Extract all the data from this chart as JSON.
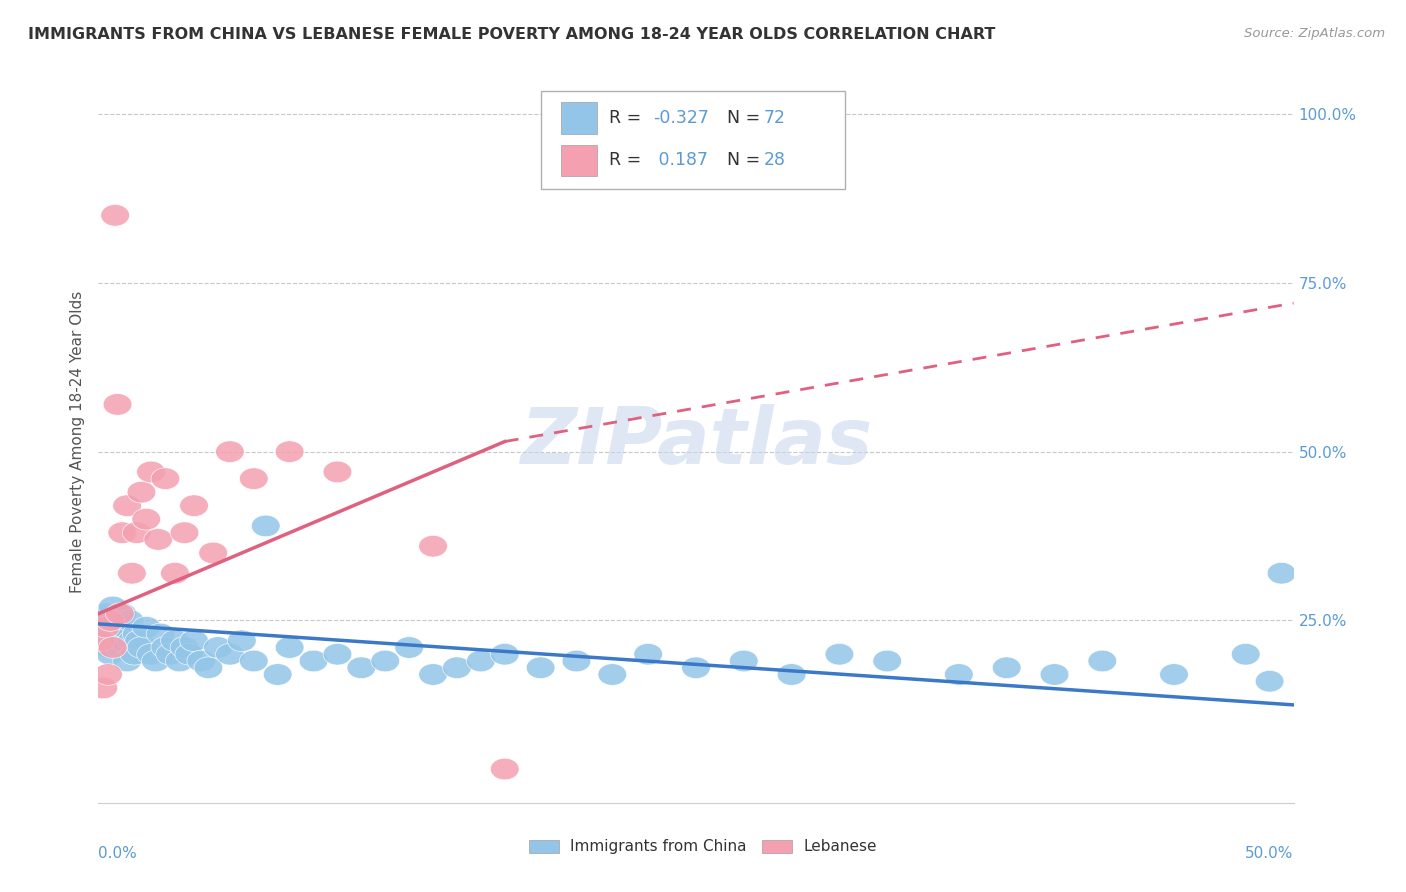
{
  "title": "IMMIGRANTS FROM CHINA VS LEBANESE FEMALE POVERTY AMONG 18-24 YEAR OLDS CORRELATION CHART",
  "source": "Source: ZipAtlas.com",
  "ylabel": "Female Poverty Among 18-24 Year Olds",
  "xlim": [
    0,
    0.5
  ],
  "ylim": [
    -0.02,
    1.05
  ],
  "ytick_vals": [
    0.25,
    0.5,
    0.75,
    1.0
  ],
  "ytick_labels": [
    "25.0%",
    "50.0%",
    "75.0%",
    "100.0%"
  ],
  "legend_r_china": "-0.327",
  "legend_n_china": "72",
  "legend_r_lebanese": "0.187",
  "legend_n_lebanese": "28",
  "color_china": "#92C5E8",
  "color_lebanese": "#F4A0B0",
  "color_trendline_china": "#3C78C8",
  "color_trendline_lebanese": "#E06080",
  "watermark_color": "#C8D8EC",
  "china_x": [
    0.001,
    0.002,
    0.002,
    0.003,
    0.003,
    0.004,
    0.004,
    0.005,
    0.005,
    0.006,
    0.006,
    0.007,
    0.007,
    0.008,
    0.008,
    0.009,
    0.01,
    0.01,
    0.011,
    0.012,
    0.013,
    0.014,
    0.015,
    0.016,
    0.017,
    0.018,
    0.02,
    0.022,
    0.024,
    0.026,
    0.028,
    0.03,
    0.032,
    0.034,
    0.036,
    0.038,
    0.04,
    0.043,
    0.046,
    0.05,
    0.055,
    0.06,
    0.065,
    0.07,
    0.075,
    0.08,
    0.09,
    0.1,
    0.11,
    0.12,
    0.13,
    0.14,
    0.15,
    0.16,
    0.17,
    0.185,
    0.2,
    0.215,
    0.23,
    0.25,
    0.27,
    0.29,
    0.31,
    0.33,
    0.36,
    0.38,
    0.4,
    0.42,
    0.45,
    0.48,
    0.49,
    0.495
  ],
  "china_y": [
    0.22,
    0.24,
    0.25,
    0.22,
    0.26,
    0.21,
    0.23,
    0.25,
    0.2,
    0.27,
    0.23,
    0.22,
    0.24,
    0.23,
    0.25,
    0.21,
    0.22,
    0.26,
    0.24,
    0.19,
    0.25,
    0.22,
    0.2,
    0.23,
    0.22,
    0.21,
    0.24,
    0.2,
    0.19,
    0.23,
    0.21,
    0.2,
    0.22,
    0.19,
    0.21,
    0.2,
    0.22,
    0.19,
    0.18,
    0.21,
    0.2,
    0.22,
    0.19,
    0.39,
    0.17,
    0.21,
    0.19,
    0.2,
    0.18,
    0.19,
    0.21,
    0.17,
    0.18,
    0.19,
    0.2,
    0.18,
    0.19,
    0.17,
    0.2,
    0.18,
    0.19,
    0.17,
    0.2,
    0.19,
    0.17,
    0.18,
    0.17,
    0.19,
    0.17,
    0.2,
    0.16,
    0.32
  ],
  "lebanese_x": [
    0.001,
    0.002,
    0.003,
    0.004,
    0.005,
    0.006,
    0.007,
    0.008,
    0.009,
    0.01,
    0.012,
    0.014,
    0.016,
    0.018,
    0.02,
    0.022,
    0.025,
    0.028,
    0.032,
    0.036,
    0.04,
    0.048,
    0.055,
    0.065,
    0.08,
    0.1,
    0.14,
    0.17
  ],
  "lebanese_y": [
    0.22,
    0.15,
    0.24,
    0.17,
    0.25,
    0.21,
    0.85,
    0.57,
    0.26,
    0.38,
    0.42,
    0.32,
    0.38,
    0.44,
    0.4,
    0.47,
    0.37,
    0.46,
    0.32,
    0.38,
    0.42,
    0.35,
    0.5,
    0.46,
    0.5,
    0.47,
    0.36,
    0.03
  ],
  "trendline_china_x0": 0.0,
  "trendline_china_y0": 0.245,
  "trendline_china_x1": 0.5,
  "trendline_china_y1": 0.125,
  "trendline_leb_solid_x0": 0.0,
  "trendline_leb_solid_y0": 0.26,
  "trendline_leb_solid_x1": 0.17,
  "trendline_leb_solid_y1": 0.515,
  "trendline_leb_dash_x0": 0.17,
  "trendline_leb_dash_y0": 0.515,
  "trendline_leb_dash_x1": 0.5,
  "trendline_leb_dash_y1": 0.72
}
